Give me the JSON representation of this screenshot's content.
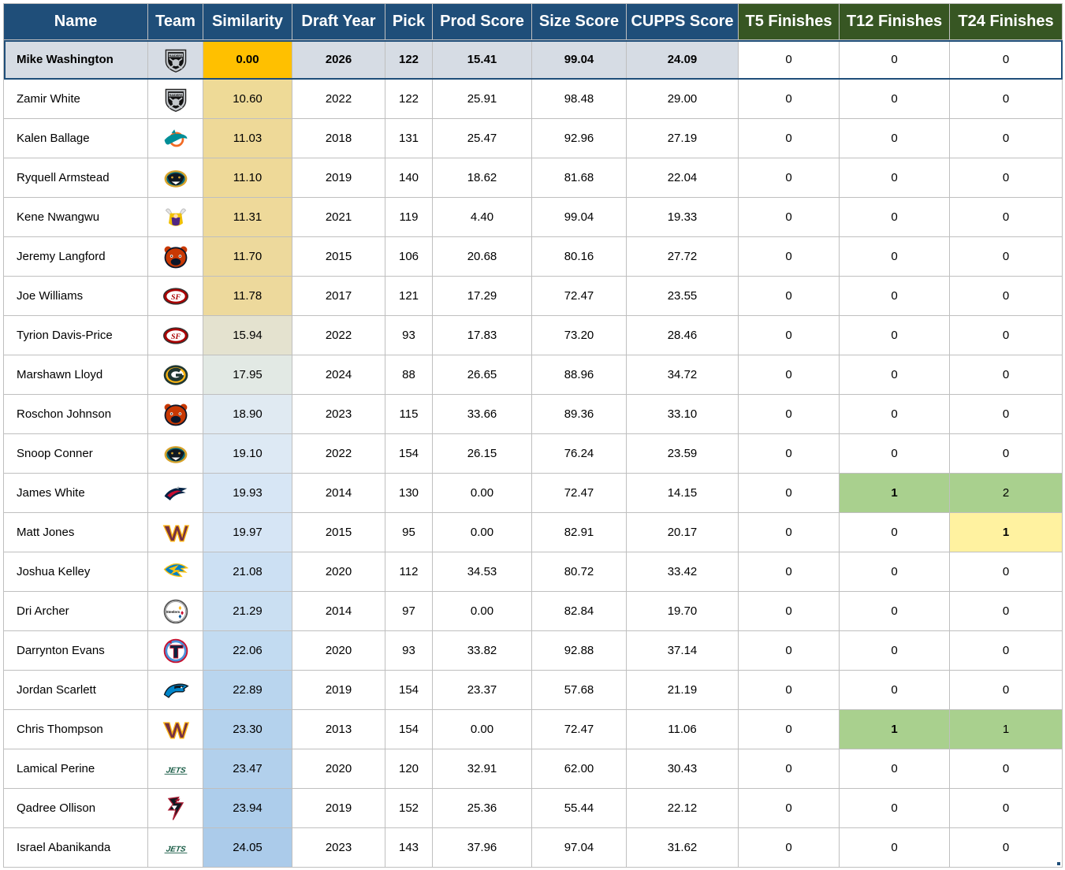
{
  "headers": [
    "Name",
    "Team",
    "Similarity",
    "Draft Year",
    "Pick",
    "Prod Score",
    "Size Score",
    "CUPPS Score",
    "T5 Finishes",
    "T12 Finishes",
    "T24 Finishes"
  ],
  "colors": {
    "header_blue": "#1f4e79",
    "header_green": "#375623",
    "target_similarity": "#ffc000",
    "finish_green": "#a9d08e",
    "finish_yellow": "#fff2a0"
  },
  "rows": [
    {
      "name": "Mike Washington",
      "team": "raiders",
      "team_icon": "raiders-logo-icon",
      "similarity": "0.00",
      "sim_bg": "#ffc000",
      "year": "2026",
      "pick": "122",
      "prod": "15.41",
      "size": "99.04",
      "cupps": "24.09",
      "t5": "0",
      "t12": "0",
      "t24": "0",
      "target": true
    },
    {
      "name": "Zamir White",
      "team": "raiders",
      "team_icon": "raiders-logo-icon",
      "similarity": "10.60",
      "sim_bg": "#eeda97",
      "year": "2022",
      "pick": "122",
      "prod": "25.91",
      "size": "98.48",
      "cupps": "29.00",
      "t5": "0",
      "t12": "0",
      "t24": "0"
    },
    {
      "name": "Kalen Ballage",
      "team": "dolphins",
      "team_icon": "dolphins-logo-icon",
      "similarity": "11.03",
      "sim_bg": "#eed998",
      "year": "2018",
      "pick": "131",
      "prod": "25.47",
      "size": "92.96",
      "cupps": "27.19",
      "t5": "0",
      "t12": "0",
      "t24": "0"
    },
    {
      "name": "Ryquell Armstead",
      "team": "jaguars",
      "team_icon": "jaguars-logo-icon",
      "similarity": "11.10",
      "sim_bg": "#eed998",
      "year": "2019",
      "pick": "140",
      "prod": "18.62",
      "size": "81.68",
      "cupps": "22.04",
      "t5": "0",
      "t12": "0",
      "t24": "0"
    },
    {
      "name": "Kene Nwangwu",
      "team": "vikings",
      "team_icon": "vikings-logo-icon",
      "similarity": "11.31",
      "sim_bg": "#eed99a",
      "year": "2021",
      "pick": "119",
      "prod": "4.40",
      "size": "99.04",
      "cupps": "19.33",
      "t5": "0",
      "t12": "0",
      "t24": "0"
    },
    {
      "name": "Jeremy Langford",
      "team": "bears",
      "team_icon": "bears-logo-icon",
      "similarity": "11.70",
      "sim_bg": "#edd99c",
      "year": "2015",
      "pick": "106",
      "prod": "20.68",
      "size": "80.16",
      "cupps": "27.72",
      "t5": "0",
      "t12": "0",
      "t24": "0"
    },
    {
      "name": "Joe Williams",
      "team": "49ers",
      "team_icon": "49ers-logo-icon",
      "similarity": "11.78",
      "sim_bg": "#edd99c",
      "year": "2017",
      "pick": "121",
      "prod": "17.29",
      "size": "72.47",
      "cupps": "23.55",
      "t5": "0",
      "t12": "0",
      "t24": "0"
    },
    {
      "name": "Tyrion Davis-Price",
      "team": "49ers",
      "team_icon": "49ers-logo-icon",
      "similarity": "15.94",
      "sim_bg": "#e4e2cf",
      "year": "2022",
      "pick": "93",
      "prod": "17.83",
      "size": "73.20",
      "cupps": "28.46",
      "t5": "0",
      "t12": "0",
      "t24": "0"
    },
    {
      "name": "Marshawn Lloyd",
      "team": "packers",
      "team_icon": "packers-logo-icon",
      "similarity": "17.95",
      "sim_bg": "#e2e9e4",
      "year": "2024",
      "pick": "88",
      "prod": "26.65",
      "size": "88.96",
      "cupps": "34.72",
      "t5": "0",
      "t12": "0",
      "t24": "0"
    },
    {
      "name": "Roschon Johnson",
      "team": "bears",
      "team_icon": "bears-logo-icon",
      "similarity": "18.90",
      "sim_bg": "#e0eaf2",
      "year": "2023",
      "pick": "115",
      "prod": "33.66",
      "size": "89.36",
      "cupps": "33.10",
      "t5": "0",
      "t12": "0",
      "t24": "0"
    },
    {
      "name": "Snoop Conner",
      "team": "jaguars",
      "team_icon": "jaguars-logo-icon",
      "similarity": "19.10",
      "sim_bg": "#dde9f4",
      "year": "2022",
      "pick": "154",
      "prod": "26.15",
      "size": "76.24",
      "cupps": "23.59",
      "t5": "0",
      "t12": "0",
      "t24": "0"
    },
    {
      "name": "James White",
      "team": "patriots",
      "team_icon": "patriots-logo-icon",
      "similarity": "19.93",
      "sim_bg": "#d7e6f5",
      "year": "2014",
      "pick": "130",
      "prod": "0.00",
      "size": "72.47",
      "cupps": "14.15",
      "t5": "0",
      "t12": "1",
      "t24": "2",
      "t12_bg": "#a9d08e",
      "t24_bg": "#a9d08e",
      "t12_bold": true
    },
    {
      "name": "Matt Jones",
      "team": "commanders",
      "team_icon": "commanders-logo-icon",
      "similarity": "19.97",
      "sim_bg": "#d6e5f5",
      "year": "2015",
      "pick": "95",
      "prod": "0.00",
      "size": "82.91",
      "cupps": "20.17",
      "t5": "0",
      "t12": "0",
      "t24": "1",
      "t24_bg": "#fff2a0",
      "t24_bold": true
    },
    {
      "name": "Joshua Kelley",
      "team": "chargers",
      "team_icon": "chargers-logo-icon",
      "similarity": "21.08",
      "sim_bg": "#cce0f3",
      "year": "2020",
      "pick": "112",
      "prod": "34.53",
      "size": "80.72",
      "cupps": "33.42",
      "t5": "0",
      "t12": "0",
      "t24": "0"
    },
    {
      "name": "Dri Archer",
      "team": "steelers",
      "team_icon": "steelers-logo-icon",
      "similarity": "21.29",
      "sim_bg": "#cadff2",
      "year": "2014",
      "pick": "97",
      "prod": "0.00",
      "size": "82.84",
      "cupps": "19.70",
      "t5": "0",
      "t12": "0",
      "t24": "0"
    },
    {
      "name": "Darrynton Evans",
      "team": "titans",
      "team_icon": "titans-logo-icon",
      "similarity": "22.06",
      "sim_bg": "#c2dbf1",
      "year": "2020",
      "pick": "93",
      "prod": "33.82",
      "size": "92.88",
      "cupps": "37.14",
      "t5": "0",
      "t12": "0",
      "t24": "0"
    },
    {
      "name": "Jordan Scarlett",
      "team": "panthers",
      "team_icon": "panthers-logo-icon",
      "similarity": "22.89",
      "sim_bg": "#b9d5ee",
      "year": "2019",
      "pick": "154",
      "prod": "23.37",
      "size": "57.68",
      "cupps": "21.19",
      "t5": "0",
      "t12": "0",
      "t24": "0"
    },
    {
      "name": "Chris Thompson",
      "team": "commanders",
      "team_icon": "commanders-logo-icon",
      "similarity": "23.30",
      "sim_bg": "#b4d2ed",
      "year": "2013",
      "pick": "154",
      "prod": "0.00",
      "size": "72.47",
      "cupps": "11.06",
      "t5": "0",
      "t12": "1",
      "t24": "1",
      "t12_bg": "#a9d08e",
      "t24_bg": "#a9d08e",
      "t12_bold": true
    },
    {
      "name": "Lamical Perine",
      "team": "jets",
      "team_icon": "jets-logo-icon",
      "similarity": "23.47",
      "sim_bg": "#b2d0ec",
      "year": "2020",
      "pick": "120",
      "prod": "32.91",
      "size": "62.00",
      "cupps": "30.43",
      "t5": "0",
      "t12": "0",
      "t24": "0"
    },
    {
      "name": "Qadree Ollison",
      "team": "falcons",
      "team_icon": "falcons-logo-icon",
      "similarity": "23.94",
      "sim_bg": "#adcdeb",
      "year": "2019",
      "pick": "152",
      "prod": "25.36",
      "size": "55.44",
      "cupps": "22.12",
      "t5": "0",
      "t12": "0",
      "t24": "0"
    },
    {
      "name": "Israel Abanikanda",
      "team": "jets",
      "team_icon": "jets-logo-icon",
      "similarity": "24.05",
      "sim_bg": "#abcbea",
      "year": "2023",
      "pick": "143",
      "prod": "37.96",
      "size": "97.04",
      "cupps": "31.62",
      "t5": "0",
      "t12": "0",
      "t24": "0"
    }
  ]
}
